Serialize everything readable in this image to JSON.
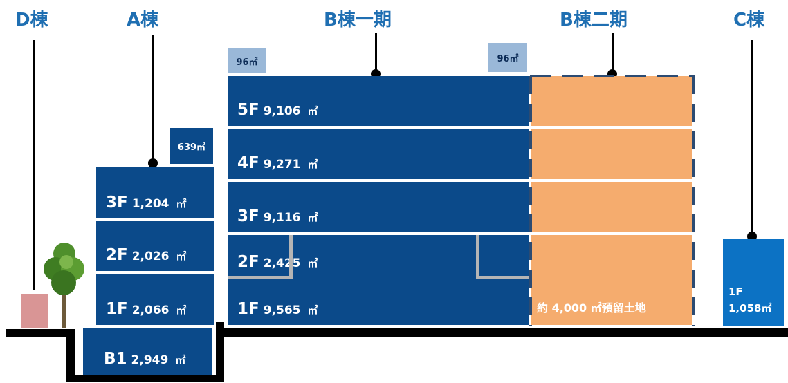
{
  "buildings": {
    "d": {
      "title": "D棟"
    },
    "a": {
      "title": "A棟",
      "extra_box": "639㎡",
      "floors": [
        {
          "floor": "3F",
          "area": "1,204",
          "unit": "㎡"
        },
        {
          "floor": "2F",
          "area": "2,026",
          "unit": "㎡"
        },
        {
          "floor": "1F",
          "area": "2,066",
          "unit": "㎡"
        },
        {
          "floor": "B1",
          "area": "2,949",
          "unit": "㎡"
        }
      ]
    },
    "b1": {
      "title": "B棟一期",
      "box_left": "96㎡",
      "box_right": "96㎡",
      "floors": [
        {
          "floor": "5F",
          "area": "9,106",
          "unit": "㎡"
        },
        {
          "floor": "4F",
          "area": "9,271",
          "unit": "㎡"
        },
        {
          "floor": "3F",
          "area": "9,116",
          "unit": "㎡"
        },
        {
          "floor": "2F",
          "area": "2,425",
          "unit": "㎡"
        },
        {
          "floor": "1F",
          "area": "9,565",
          "unit": "㎡"
        }
      ]
    },
    "b2": {
      "title": "B棟二期",
      "reserved_label": "約 4,000 ㎡預留土地"
    },
    "c": {
      "title": "C棟",
      "floor": "1F",
      "area": "1,058㎡"
    }
  },
  "colors": {
    "title": "#1f6fb2",
    "floor_fill": "#0b4a8a",
    "c_fill": "#0c72c4",
    "reserved_fill": "#f5ac6e",
    "small_box_fill": "#9ab8d8",
    "dash": "#2c4b72"
  }
}
